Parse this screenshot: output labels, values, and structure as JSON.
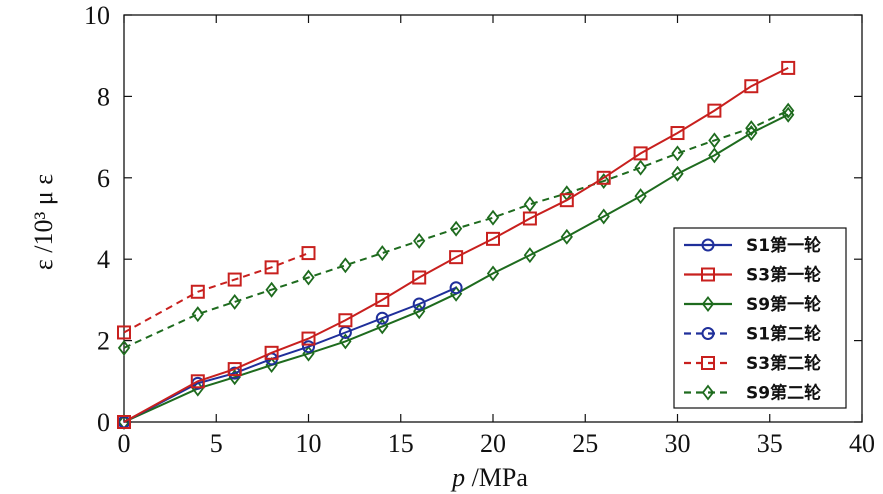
{
  "chart_data": {
    "type": "line",
    "xlabel_italic": "p",
    "xlabel_rest": " /MPa",
    "ylabel": "ε /10³ μ ε",
    "xlim": [
      0,
      40
    ],
    "ylim": [
      0,
      10
    ],
    "xticks": [
      0,
      5,
      10,
      15,
      20,
      25,
      30,
      35,
      40
    ],
    "yticks": [
      0,
      2,
      4,
      6,
      8,
      10
    ],
    "grid": false,
    "legend_position": "bottom-right",
    "series": [
      {
        "name": "S1第一轮",
        "color": "#1f2f9a",
        "marker": "circle",
        "dash": false,
        "x": [
          0,
          4,
          6,
          8,
          10,
          12,
          14,
          16,
          18
        ],
        "y": [
          0,
          0.95,
          1.2,
          1.55,
          1.85,
          2.2,
          2.55,
          2.9,
          3.3
        ]
      },
      {
        "name": "S3第一轮",
        "color": "#c8201e",
        "marker": "square",
        "dash": false,
        "x": [
          0,
          4,
          6,
          8,
          10,
          12,
          14,
          16,
          18,
          20,
          22,
          24,
          26,
          28,
          30,
          32,
          34,
          36
        ],
        "y": [
          0,
          1.0,
          1.3,
          1.7,
          2.05,
          2.5,
          3.0,
          3.55,
          4.05,
          4.5,
          5.0,
          5.45,
          6.0,
          6.6,
          7.1,
          7.65,
          8.25,
          8.7
        ]
      },
      {
        "name": "S9第一轮",
        "color": "#1e6b1e",
        "marker": "diamond",
        "dash": false,
        "x": [
          0,
          4,
          6,
          8,
          10,
          12,
          14,
          16,
          18,
          20,
          22,
          24,
          26,
          28,
          30,
          32,
          34,
          36
        ],
        "y": [
          0,
          0.82,
          1.1,
          1.4,
          1.68,
          1.98,
          2.35,
          2.72,
          3.15,
          3.65,
          4.1,
          4.55,
          5.05,
          5.55,
          6.1,
          6.55,
          7.1,
          7.55
        ]
      },
      {
        "name": "S1第二轮",
        "color": "#1f2f9a",
        "marker": "circle",
        "dash": true,
        "x": [],
        "y": []
      },
      {
        "name": "S3第二轮",
        "color": "#c8201e",
        "marker": "square",
        "dash": true,
        "x": [
          0,
          4,
          6,
          8,
          10
        ],
        "y": [
          2.2,
          3.2,
          3.5,
          3.8,
          4.15
        ]
      },
      {
        "name": "S9第二轮",
        "color": "#1e6b1e",
        "marker": "diamond",
        "dash": true,
        "x": [
          0,
          4,
          6,
          8,
          10,
          12,
          14,
          16,
          18,
          20,
          22,
          24,
          26,
          28,
          30,
          32,
          34,
          36
        ],
        "y": [
          1.82,
          2.65,
          2.95,
          3.25,
          3.55,
          3.85,
          4.15,
          4.45,
          4.75,
          5.02,
          5.35,
          5.62,
          5.92,
          6.25,
          6.6,
          6.92,
          7.22,
          7.65
        ]
      }
    ]
  }
}
